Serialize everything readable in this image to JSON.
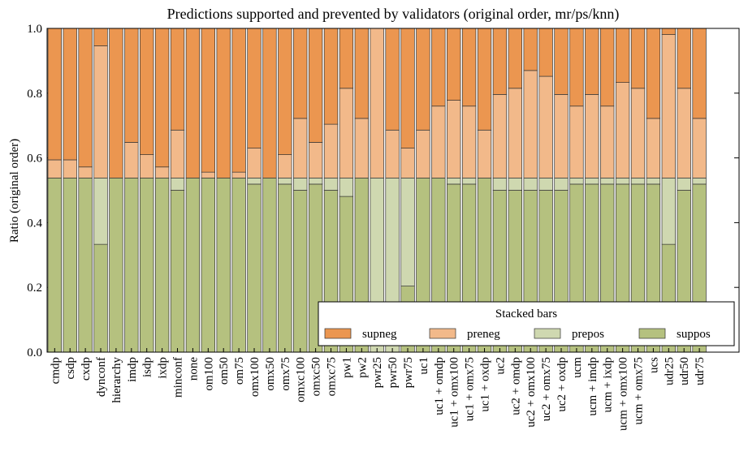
{
  "chart_data": {
    "type": "stacked_bar",
    "title": "Predictions supported and prevented by validators (original order, mr/ps/knn)",
    "y_label": "Ratio (original order)",
    "legend_title": "Stacked bars",
    "legend_position": "lower right",
    "categories": [
      "cmdp",
      "csdp",
      "cxdp",
      "dynconf",
      "hierarchy",
      "imdp",
      "isdp",
      "ixdp",
      "minconf",
      "none",
      "om100",
      "om50",
      "om75",
      "omx100",
      "omx50",
      "omx75",
      "omxc100",
      "omxc50",
      "omxc75",
      "pw1",
      "pw2",
      "pwr25",
      "pwr50",
      "pwr75",
      "uc1",
      "uc1 + omdp",
      "uc1 + omx100",
      "uc1 + omx75",
      "uc1 + oxdp",
      "uc2",
      "uc2 + omdp",
      "uc2 + omx100",
      "uc2 + omx75",
      "uc2 + oxdp",
      "ucm",
      "ucm + imdp",
      "ucm + ixdp",
      "ucm + omx100",
      "ucm + omx75",
      "ucs",
      "udr25",
      "udr50",
      "udr75"
    ],
    "series": [
      {
        "name": "suppos",
        "color": "#b5c17f",
        "values": [
          0.538,
          0.538,
          0.538,
          0.333,
          0.538,
          0.538,
          0.538,
          0.538,
          0.5,
          0.538,
          0.538,
          0.538,
          0.538,
          0.519,
          0.538,
          0.519,
          0.5,
          0.519,
          0.5,
          0.481,
          0.538,
          0,
          0,
          0.204,
          0.538,
          0.538,
          0.519,
          0.519,
          0.538,
          0.5,
          0.5,
          0.5,
          0.5,
          0.5,
          0.519,
          0.519,
          0.519,
          0.519,
          0.519,
          0.519,
          0.333,
          0.5,
          0.519
        ]
      },
      {
        "name": "prepos",
        "color": "#cfd8b0",
        "values": [
          0,
          0,
          0,
          0.205,
          0,
          0,
          0,
          0,
          0.038,
          0,
          0,
          0,
          0,
          0.019,
          0,
          0.019,
          0.038,
          0.019,
          0.038,
          0.057,
          0,
          0.538,
          0.538,
          0.334,
          0,
          0,
          0.019,
          0.019,
          0,
          0.038,
          0.038,
          0.038,
          0.038,
          0.038,
          0.019,
          0.019,
          0.019,
          0.019,
          0.019,
          0.019,
          0.205,
          0.038,
          0.019
        ]
      },
      {
        "name": "preneg",
        "color": "#f2b98a",
        "values": [
          0.056,
          0.056,
          0.034,
          0.408,
          0,
          0.11,
          0.072,
          0.034,
          0.148,
          0,
          0.018,
          0,
          0.018,
          0.092,
          0,
          0.072,
          0.184,
          0.11,
          0.166,
          0.277,
          0.184,
          0.462,
          0.148,
          0.092,
          0.148,
          0.222,
          0.24,
          0.222,
          0.148,
          0.258,
          0.277,
          0.332,
          0.314,
          0.258,
          0.222,
          0.258,
          0.222,
          0.295,
          0.277,
          0.184,
          0.443,
          0.277,
          0.184
        ]
      },
      {
        "name": "supneg",
        "color": "#eb9650",
        "values": [
          0.406,
          0.406,
          0.428,
          0.054,
          0.462,
          0.352,
          0.39,
          0.428,
          0.314,
          0.462,
          0.444,
          0.462,
          0.444,
          0.37,
          0.462,
          0.39,
          0.278,
          0.352,
          0.296,
          0.185,
          0.278,
          0,
          0.314,
          0.37,
          0.314,
          0.24,
          0.222,
          0.24,
          0.314,
          0.204,
          0.185,
          0.13,
          0.148,
          0.204,
          0.24,
          0.204,
          0.24,
          0.167,
          0.185,
          0.278,
          0.019,
          0.185,
          0.278
        ]
      }
    ],
    "ylim": [
      0,
      1
    ],
    "yticks": [
      {
        "value": 0,
        "label": "0.0"
      },
      {
        "value": 0.2,
        "label": "0.2"
      },
      {
        "value": 0.4,
        "label": "0.4"
      },
      {
        "value": 0.6,
        "label": "0.6"
      },
      {
        "value": 0.8,
        "label": "0.8"
      },
      {
        "value": 1,
        "label": "1.0"
      }
    ]
  }
}
